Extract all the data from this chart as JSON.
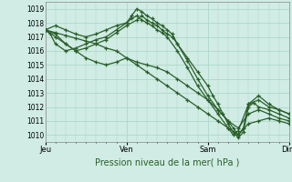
{
  "background_color": "#d0ece4",
  "plot_bg_color": "#d0ece4",
  "grid_color": "#a8d4c4",
  "line_color": "#2a5e2a",
  "xlabel": "Pression niveau de la mer( hPa )",
  "xtick_labels": [
    "Jeu",
    "Ven",
    "Sam",
    "Dim"
  ],
  "xtick_positions": [
    0,
    8,
    16,
    24
  ],
  "ylim": [
    1009.5,
    1019.5
  ],
  "yticks": [
    1010,
    1011,
    1012,
    1013,
    1014,
    1015,
    1016,
    1017,
    1018,
    1019
  ],
  "lines": [
    [
      0,
      1017.5,
      1,
      1017.3,
      2,
      1017.1,
      3,
      1016.9,
      4,
      1016.7,
      5,
      1016.5,
      6,
      1016.2,
      7,
      1016.0,
      8,
      1015.5,
      9,
      1015.0,
      10,
      1014.5,
      11,
      1014.0,
      12,
      1013.5,
      13,
      1013.0,
      14,
      1012.5,
      15,
      1012.0,
      16,
      1011.5,
      17,
      1011.0,
      18,
      1010.5,
      19,
      1010.0,
      20,
      1010.8,
      21,
      1011.0,
      22,
      1011.2,
      23,
      1011.0,
      24,
      1010.8
    ],
    [
      0,
      1017.5,
      1,
      1017.2,
      2,
      1016.5,
      3,
      1016.0,
      4,
      1015.5,
      5,
      1015.2,
      6,
      1015.0,
      7,
      1015.2,
      8,
      1015.5,
      9,
      1015.2,
      10,
      1015.0,
      11,
      1014.8,
      12,
      1014.5,
      13,
      1014.0,
      14,
      1013.5,
      15,
      1013.0,
      16,
      1012.5,
      17,
      1011.8,
      18,
      1011.0,
      19,
      1010.5,
      20,
      1011.5,
      21,
      1011.8,
      22,
      1011.5,
      23,
      1011.2,
      24,
      1011.0
    ],
    [
      0,
      1017.5,
      0.5,
      1017.2,
      1,
      1016.5,
      2,
      1016.0,
      3,
      1016.2,
      4,
      1016.5,
      5,
      1016.8,
      6,
      1017.0,
      7,
      1017.5,
      8,
      1018.0,
      8.5,
      1018.5,
      9,
      1019.0,
      9.5,
      1018.8,
      10,
      1018.5,
      10.5,
      1018.3,
      11,
      1018.0,
      11.5,
      1017.8,
      12,
      1017.5,
      12.5,
      1017.2,
      13,
      1016.5,
      14,
      1015.5,
      15,
      1014.5,
      16,
      1013.5,
      16.5,
      1012.8,
      17,
      1012.2,
      17.5,
      1011.5,
      18,
      1010.8,
      18.5,
      1010.2,
      19,
      1009.8,
      19.5,
      1010.2,
      20,
      1012.0,
      20.5,
      1012.3,
      21,
      1012.0,
      22,
      1011.8,
      23,
      1011.5,
      24,
      1011.2
    ],
    [
      0,
      1017.5,
      1,
      1017.8,
      2,
      1017.5,
      3,
      1017.2,
      4,
      1017.0,
      5,
      1017.2,
      6,
      1017.5,
      7,
      1017.8,
      8,
      1018.0,
      8.5,
      1018.3,
      9,
      1018.5,
      9.5,
      1018.2,
      10,
      1018.0,
      10.5,
      1017.8,
      11,
      1017.5,
      11.5,
      1017.3,
      12,
      1017.0,
      13,
      1016.0,
      14,
      1014.8,
      15,
      1013.5,
      16,
      1012.5,
      17,
      1011.5,
      18,
      1010.5,
      18.5,
      1010.0,
      19,
      1010.3,
      20,
      1012.2,
      21,
      1012.5,
      22,
      1012.0,
      23,
      1011.8,
      24,
      1011.5
    ],
    [
      0,
      1017.5,
      1,
      1017.0,
      2,
      1016.5,
      3,
      1016.0,
      4,
      1016.2,
      5,
      1016.5,
      6,
      1016.8,
      7,
      1017.3,
      8,
      1017.8,
      9,
      1018.2,
      9.5,
      1018.5,
      10,
      1018.2,
      10.5,
      1018.0,
      11,
      1017.8,
      11.5,
      1017.5,
      12,
      1017.2,
      12.5,
      1017.0,
      13,
      1016.5,
      14,
      1015.3,
      15,
      1014.0,
      16,
      1012.8,
      17,
      1011.8,
      18,
      1011.0,
      18.5,
      1010.5,
      19,
      1010.0,
      19.5,
      1010.5,
      20,
      1012.2,
      21,
      1012.8,
      22,
      1012.2,
      23,
      1011.8,
      24,
      1011.5
    ]
  ],
  "figsize": [
    3.2,
    2.0
  ],
  "dpi": 100,
  "xlabel_fontsize": 7,
  "ytick_fontsize": 5.5,
  "xtick_fontsize": 6
}
